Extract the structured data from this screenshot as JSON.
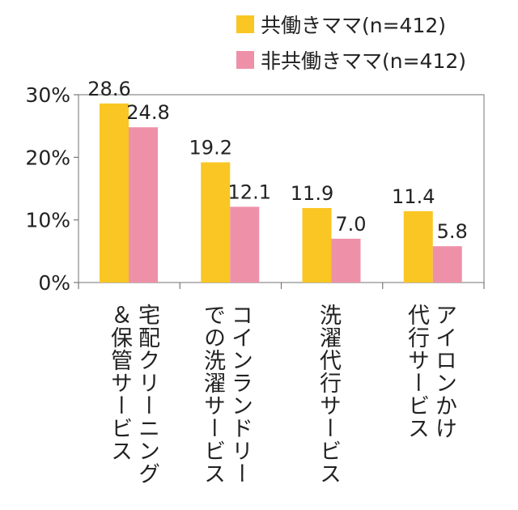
{
  "chart_data": {
    "type": "bar",
    "categories": [
      [
        "宅配クリーニング",
        "＆保管サービス"
      ],
      [
        "コインランドリー",
        "での洗濯サービス"
      ],
      [
        "洗濯代行サービス"
      ],
      [
        "アイロンかけ",
        "代行サービス"
      ]
    ],
    "series": [
      {
        "name": "共働きママ(n=412)",
        "color": "#F9C623",
        "values": [
          28.6,
          19.2,
          11.9,
          11.4
        ],
        "labels": [
          "28.6",
          "19.2",
          "11.9",
          "11.4"
        ]
      },
      {
        "name": "非共働きママ(n=412)",
        "color": "#EE91A8",
        "values": [
          24.8,
          12.1,
          7.0,
          5.8
        ],
        "labels": [
          "24.8",
          "12.1",
          "7.0",
          "5.8"
        ]
      }
    ],
    "yticks": [
      "0%",
      "10%",
      "20%",
      "30%"
    ],
    "ylim": [
      0,
      30
    ],
    "grid": false,
    "legend_position": "top-right"
  }
}
